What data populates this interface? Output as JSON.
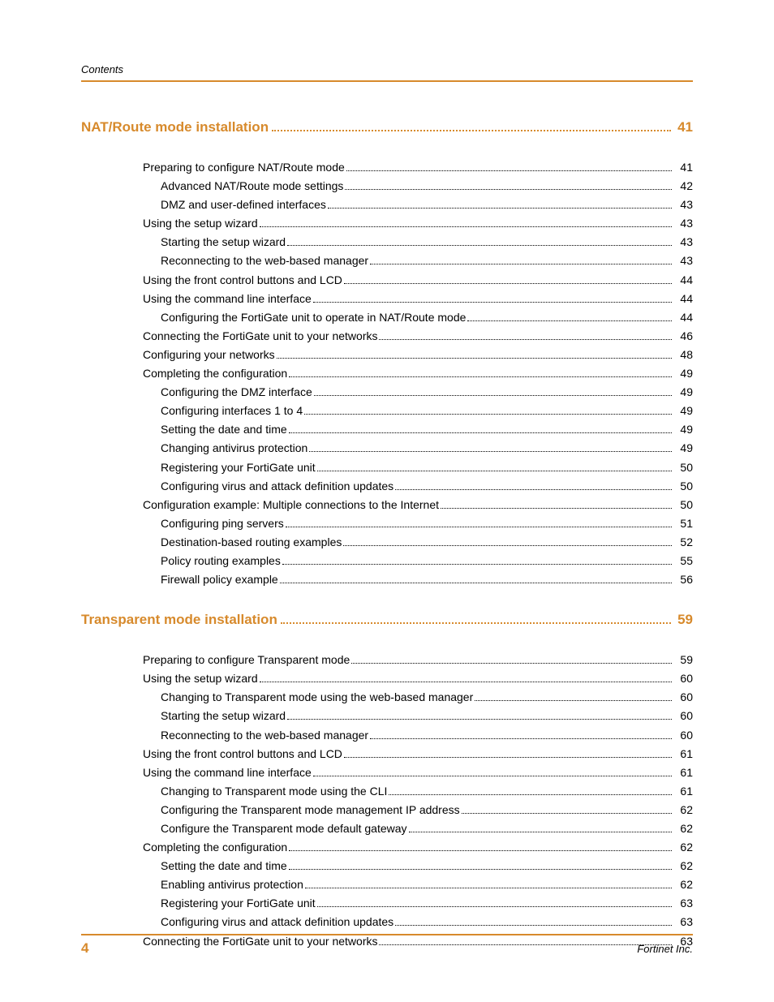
{
  "colors": {
    "accent": "#d78a2c",
    "text": "#000000",
    "rule": "#d78a2c"
  },
  "typography": {
    "body_font": "Arial",
    "body_size_pt": 11,
    "heading_size_pt": 13,
    "heading_weight": "bold"
  },
  "header": {
    "label": "Contents"
  },
  "footer": {
    "page_number": "4",
    "company": "Fortinet Inc."
  },
  "sections": [
    {
      "title": "NAT/Route mode installation",
      "page": "41",
      "entries": [
        {
          "level": 1,
          "label": "Preparing to configure NAT/Route mode",
          "page": "41"
        },
        {
          "level": 2,
          "label": "Advanced NAT/Route mode settings",
          "page": "42"
        },
        {
          "level": 2,
          "label": "DMZ and user-defined interfaces",
          "page": "43"
        },
        {
          "level": 1,
          "label": "Using the setup wizard",
          "page": "43"
        },
        {
          "level": 2,
          "label": "Starting the setup wizard",
          "page": "43"
        },
        {
          "level": 2,
          "label": "Reconnecting to the web-based manager",
          "page": "43"
        },
        {
          "level": 1,
          "label": "Using the front control buttons and LCD",
          "page": "44"
        },
        {
          "level": 1,
          "label": "Using the command line interface",
          "page": "44"
        },
        {
          "level": 2,
          "label": "Configuring the FortiGate unit to operate in NAT/Route mode",
          "page": "44"
        },
        {
          "level": 1,
          "label": "Connecting the FortiGate unit to your networks",
          "page": "46"
        },
        {
          "level": 1,
          "label": "Configuring your networks",
          "page": "48"
        },
        {
          "level": 1,
          "label": "Completing the configuration",
          "page": "49"
        },
        {
          "level": 2,
          "label": "Configuring the DMZ interface",
          "page": "49"
        },
        {
          "level": 2,
          "label": "Configuring interfaces 1 to 4",
          "page": "49"
        },
        {
          "level": 2,
          "label": "Setting the date and time",
          "page": "49"
        },
        {
          "level": 2,
          "label": "Changing antivirus protection",
          "page": "49"
        },
        {
          "level": 2,
          "label": "Registering your FortiGate unit",
          "page": "50"
        },
        {
          "level": 2,
          "label": "Configuring virus and attack definition updates",
          "page": "50"
        },
        {
          "level": 1,
          "label": "Configuration example: Multiple connections to the Internet",
          "page": "50"
        },
        {
          "level": 2,
          "label": "Configuring ping servers",
          "page": "51"
        },
        {
          "level": 2,
          "label": "Destination-based routing examples",
          "page": "52"
        },
        {
          "level": 2,
          "label": "Policy routing examples",
          "page": "55"
        },
        {
          "level": 2,
          "label": "Firewall policy example",
          "page": "56"
        }
      ]
    },
    {
      "title": "Transparent mode installation",
      "page": "59",
      "entries": [
        {
          "level": 1,
          "label": "Preparing to configure Transparent mode",
          "page": "59"
        },
        {
          "level": 1,
          "label": "Using the setup wizard",
          "page": "60"
        },
        {
          "level": 2,
          "label": "Changing to Transparent mode using the web-based manager",
          "page": "60"
        },
        {
          "level": 2,
          "label": "Starting the setup wizard",
          "page": "60"
        },
        {
          "level": 2,
          "label": "Reconnecting to the web-based manager",
          "page": "60"
        },
        {
          "level": 1,
          "label": "Using the front control buttons and LCD",
          "page": "61"
        },
        {
          "level": 1,
          "label": "Using the command line interface",
          "page": "61"
        },
        {
          "level": 2,
          "label": "Changing to Transparent mode using the CLI",
          "page": "61"
        },
        {
          "level": 2,
          "label": "Configuring the Transparent mode management IP address",
          "page": "62"
        },
        {
          "level": 2,
          "label": "Configure the Transparent mode default gateway",
          "page": "62"
        },
        {
          "level": 1,
          "label": "Completing the configuration",
          "page": "62"
        },
        {
          "level": 2,
          "label": "Setting the date and time",
          "page": "62"
        },
        {
          "level": 2,
          "label": "Enabling antivirus protection",
          "page": "62"
        },
        {
          "level": 2,
          "label": "Registering your FortiGate unit",
          "page": "63"
        },
        {
          "level": 2,
          "label": "Configuring virus and attack definition updates",
          "page": "63"
        },
        {
          "level": 1,
          "label": "Connecting the FortiGate unit to your networks",
          "page": "63"
        }
      ]
    }
  ]
}
